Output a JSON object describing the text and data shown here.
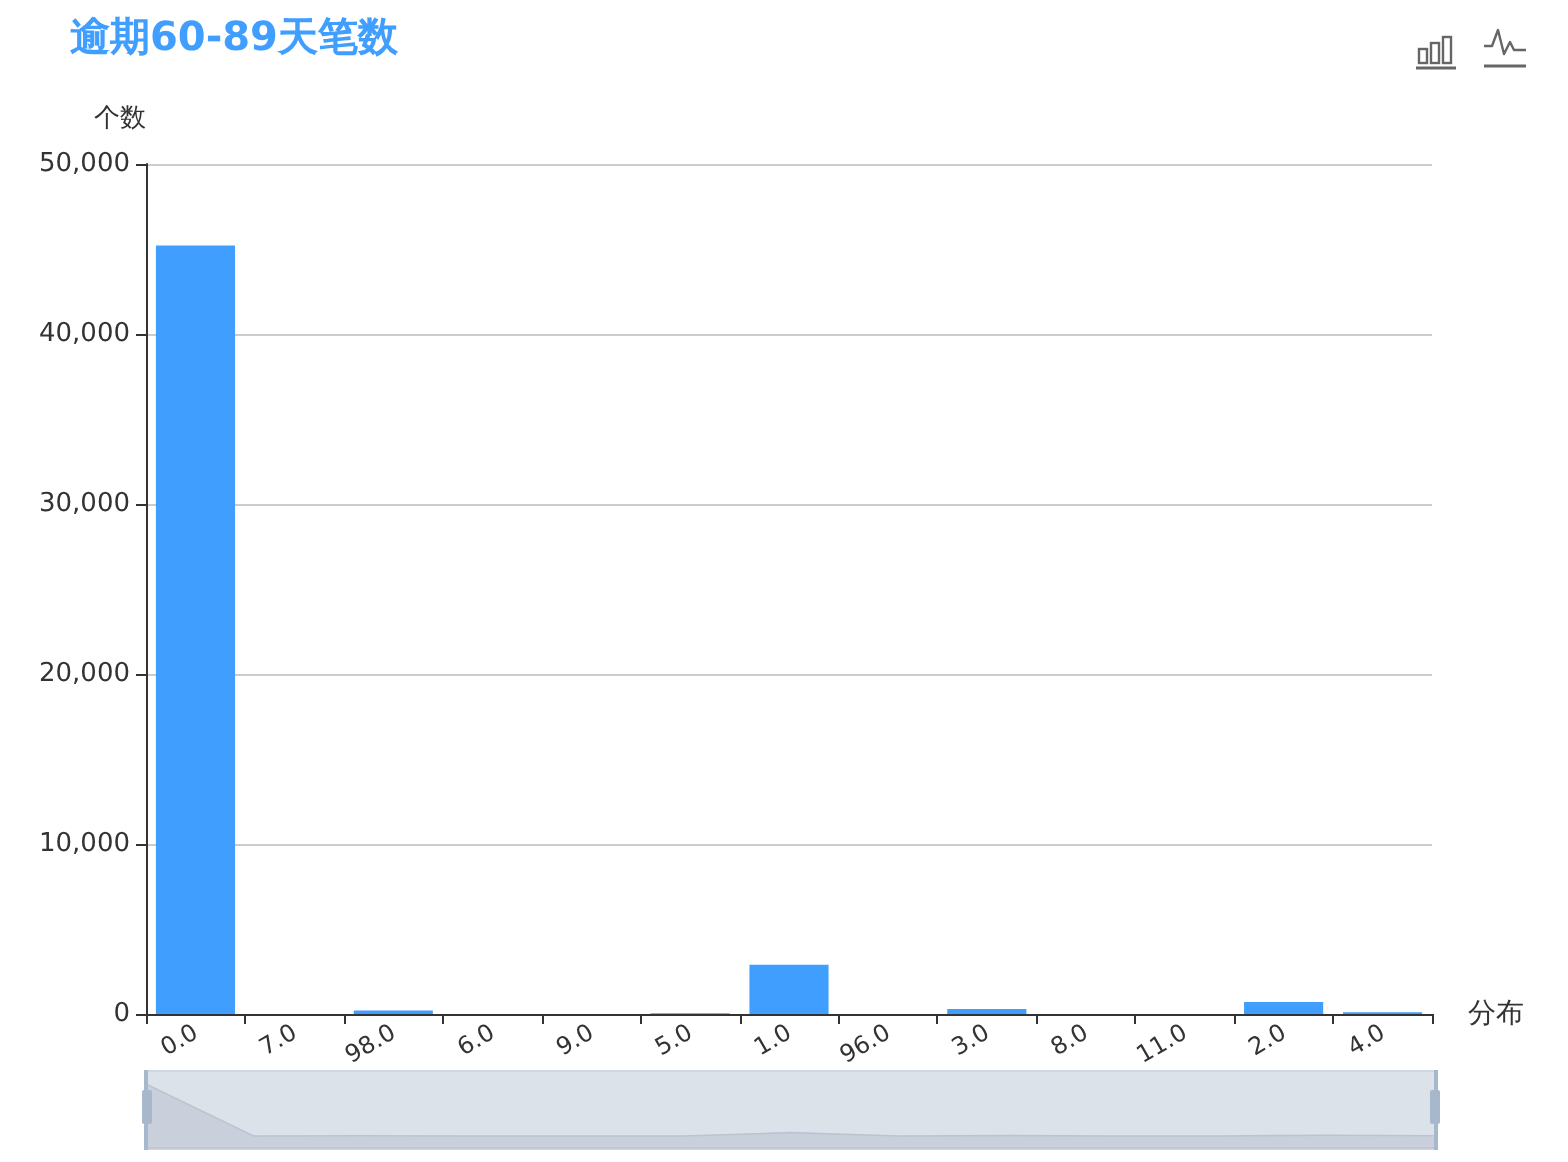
{
  "chart_data": {
    "type": "bar",
    "title": "逾期60-89天笔数",
    "xlabel": "分布",
    "ylabel": "个数",
    "categories": [
      "0.0",
      "7.0",
      "98.0",
      "6.0",
      "9.0",
      "5.0",
      "1.0",
      "96.0",
      "3.0",
      "8.0",
      "11.0",
      "2.0",
      "4.0"
    ],
    "values": [
      45200,
      0,
      200,
      0,
      0,
      50,
      2900,
      0,
      300,
      0,
      0,
      700,
      100
    ],
    "color": "#409eff",
    "ylim": [
      0,
      50000
    ],
    "yticks": [
      0,
      {
        "value": 10000,
        "label": "10,000"
      },
      {
        "value": 20000,
        "label": "20,000"
      },
      {
        "value": 30000,
        "label": "30,000"
      },
      {
        "value": 40000,
        "label": "40,000"
      },
      {
        "value": 50000,
        "label": "50,000"
      }
    ],
    "grid": "y"
  }
}
